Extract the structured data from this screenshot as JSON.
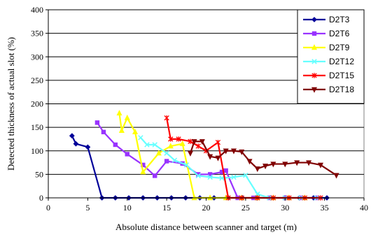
{
  "chart_data": {
    "type": "line",
    "title": "",
    "xlabel": "Absolute distance between scanner and target (m)",
    "ylabel": "Detected thickness of actual slot (%)",
    "xlim": [
      0,
      40
    ],
    "ylim": [
      0,
      400
    ],
    "xticks": [
      0,
      5,
      10,
      15,
      20,
      25,
      30,
      35,
      40
    ],
    "yticks": [
      0,
      50,
      100,
      150,
      200,
      250,
      300,
      350,
      400
    ],
    "xtick_labels": [
      "0",
      "5",
      "10",
      "15",
      "20",
      "25",
      "30",
      "35",
      "40"
    ],
    "ytick_labels": [
      "0",
      "50",
      "100",
      "150",
      "200",
      "250",
      "300",
      "350",
      "400"
    ],
    "grid": "horizontal",
    "legend_position": "top-right",
    "series": [
      {
        "name": "D2T3",
        "color": "#000099",
        "marker": "diamond",
        "points": [
          [
            3,
            132
          ],
          [
            3.5,
            115
          ],
          [
            5,
            108
          ],
          [
            6.8,
            0
          ],
          [
            8.5,
            0
          ],
          [
            10.2,
            0
          ],
          [
            12,
            0
          ],
          [
            13.8,
            0
          ],
          [
            15.6,
            0
          ],
          [
            17.4,
            0
          ],
          [
            19.2,
            0
          ],
          [
            21,
            0
          ],
          [
            22.8,
            0
          ],
          [
            24.6,
            0
          ],
          [
            26.4,
            0
          ],
          [
            28.2,
            0
          ],
          [
            30,
            0
          ],
          [
            31.8,
            0
          ],
          [
            33.6,
            0
          ],
          [
            35.3,
            0
          ]
        ]
      },
      {
        "name": "D2T6",
        "color": "#9933ff",
        "marker": "square",
        "points": [
          [
            6.2,
            160
          ],
          [
            7,
            140
          ],
          [
            8.5,
            113
          ],
          [
            10,
            93
          ],
          [
            12,
            70
          ],
          [
            13.5,
            47
          ],
          [
            15,
            78
          ],
          [
            17,
            73
          ],
          [
            19,
            50
          ],
          [
            20.5,
            50
          ],
          [
            22,
            55
          ],
          [
            22.5,
            58
          ],
          [
            24,
            0
          ],
          [
            26,
            0
          ],
          [
            28,
            0
          ],
          [
            30,
            0
          ],
          [
            32,
            0
          ],
          [
            34,
            0
          ]
        ]
      },
      {
        "name": "D2T9",
        "color": "#ffff00",
        "marker": "triangle",
        "points": [
          [
            9,
            180
          ],
          [
            9.3,
            143
          ],
          [
            10,
            170
          ],
          [
            11,
            140
          ],
          [
            12,
            55
          ],
          [
            14,
            95
          ],
          [
            15.5,
            110
          ],
          [
            17,
            115
          ],
          [
            18.5,
            0
          ],
          [
            20.5,
            0
          ],
          [
            22.5,
            0
          ],
          [
            24.5,
            0
          ],
          [
            26.5,
            0
          ],
          [
            28.5,
            0
          ],
          [
            30.5,
            0
          ],
          [
            32.5,
            0
          ]
        ]
      },
      {
        "name": "D2T12",
        "color": "#66ffff",
        "marker": "x",
        "points": [
          [
            11.7,
            128
          ],
          [
            12.5,
            113
          ],
          [
            13.5,
            113
          ],
          [
            15,
            95
          ],
          [
            16,
            80
          ],
          [
            17.5,
            70
          ],
          [
            19,
            47
          ],
          [
            20.5,
            44
          ],
          [
            22,
            42
          ],
          [
            23.5,
            44
          ],
          [
            25,
            48
          ],
          [
            26.5,
            8
          ],
          [
            28,
            0
          ],
          [
            30,
            0
          ],
          [
            32,
            0
          ],
          [
            34,
            0
          ]
        ]
      },
      {
        "name": "D2T15",
        "color": "#ff0000",
        "marker": "asterisk",
        "points": [
          [
            15,
            170
          ],
          [
            15.5,
            125
          ],
          [
            16.5,
            125
          ],
          [
            18,
            120
          ],
          [
            19,
            110
          ],
          [
            20,
            100
          ],
          [
            21.5,
            118
          ],
          [
            22.8,
            0
          ],
          [
            24.5,
            0
          ],
          [
            26.5,
            0
          ],
          [
            28.5,
            0
          ],
          [
            30.5,
            0
          ],
          [
            32.5,
            0
          ],
          [
            34.5,
            0
          ]
        ]
      },
      {
        "name": "D2T18",
        "color": "#800000",
        "marker": "tri-down",
        "points": [
          [
            18,
            95
          ],
          [
            18.5,
            120
          ],
          [
            19.5,
            120
          ],
          [
            20.5,
            88
          ],
          [
            21.5,
            85
          ],
          [
            22.5,
            100
          ],
          [
            23.5,
            100
          ],
          [
            24.5,
            98
          ],
          [
            25.5,
            78
          ],
          [
            26.5,
            62
          ],
          [
            27.5,
            68
          ],
          [
            28.5,
            72
          ],
          [
            30,
            72
          ],
          [
            31.5,
            75
          ],
          [
            33,
            75
          ],
          [
            34.5,
            70
          ],
          [
            36.5,
            48
          ]
        ]
      }
    ]
  }
}
